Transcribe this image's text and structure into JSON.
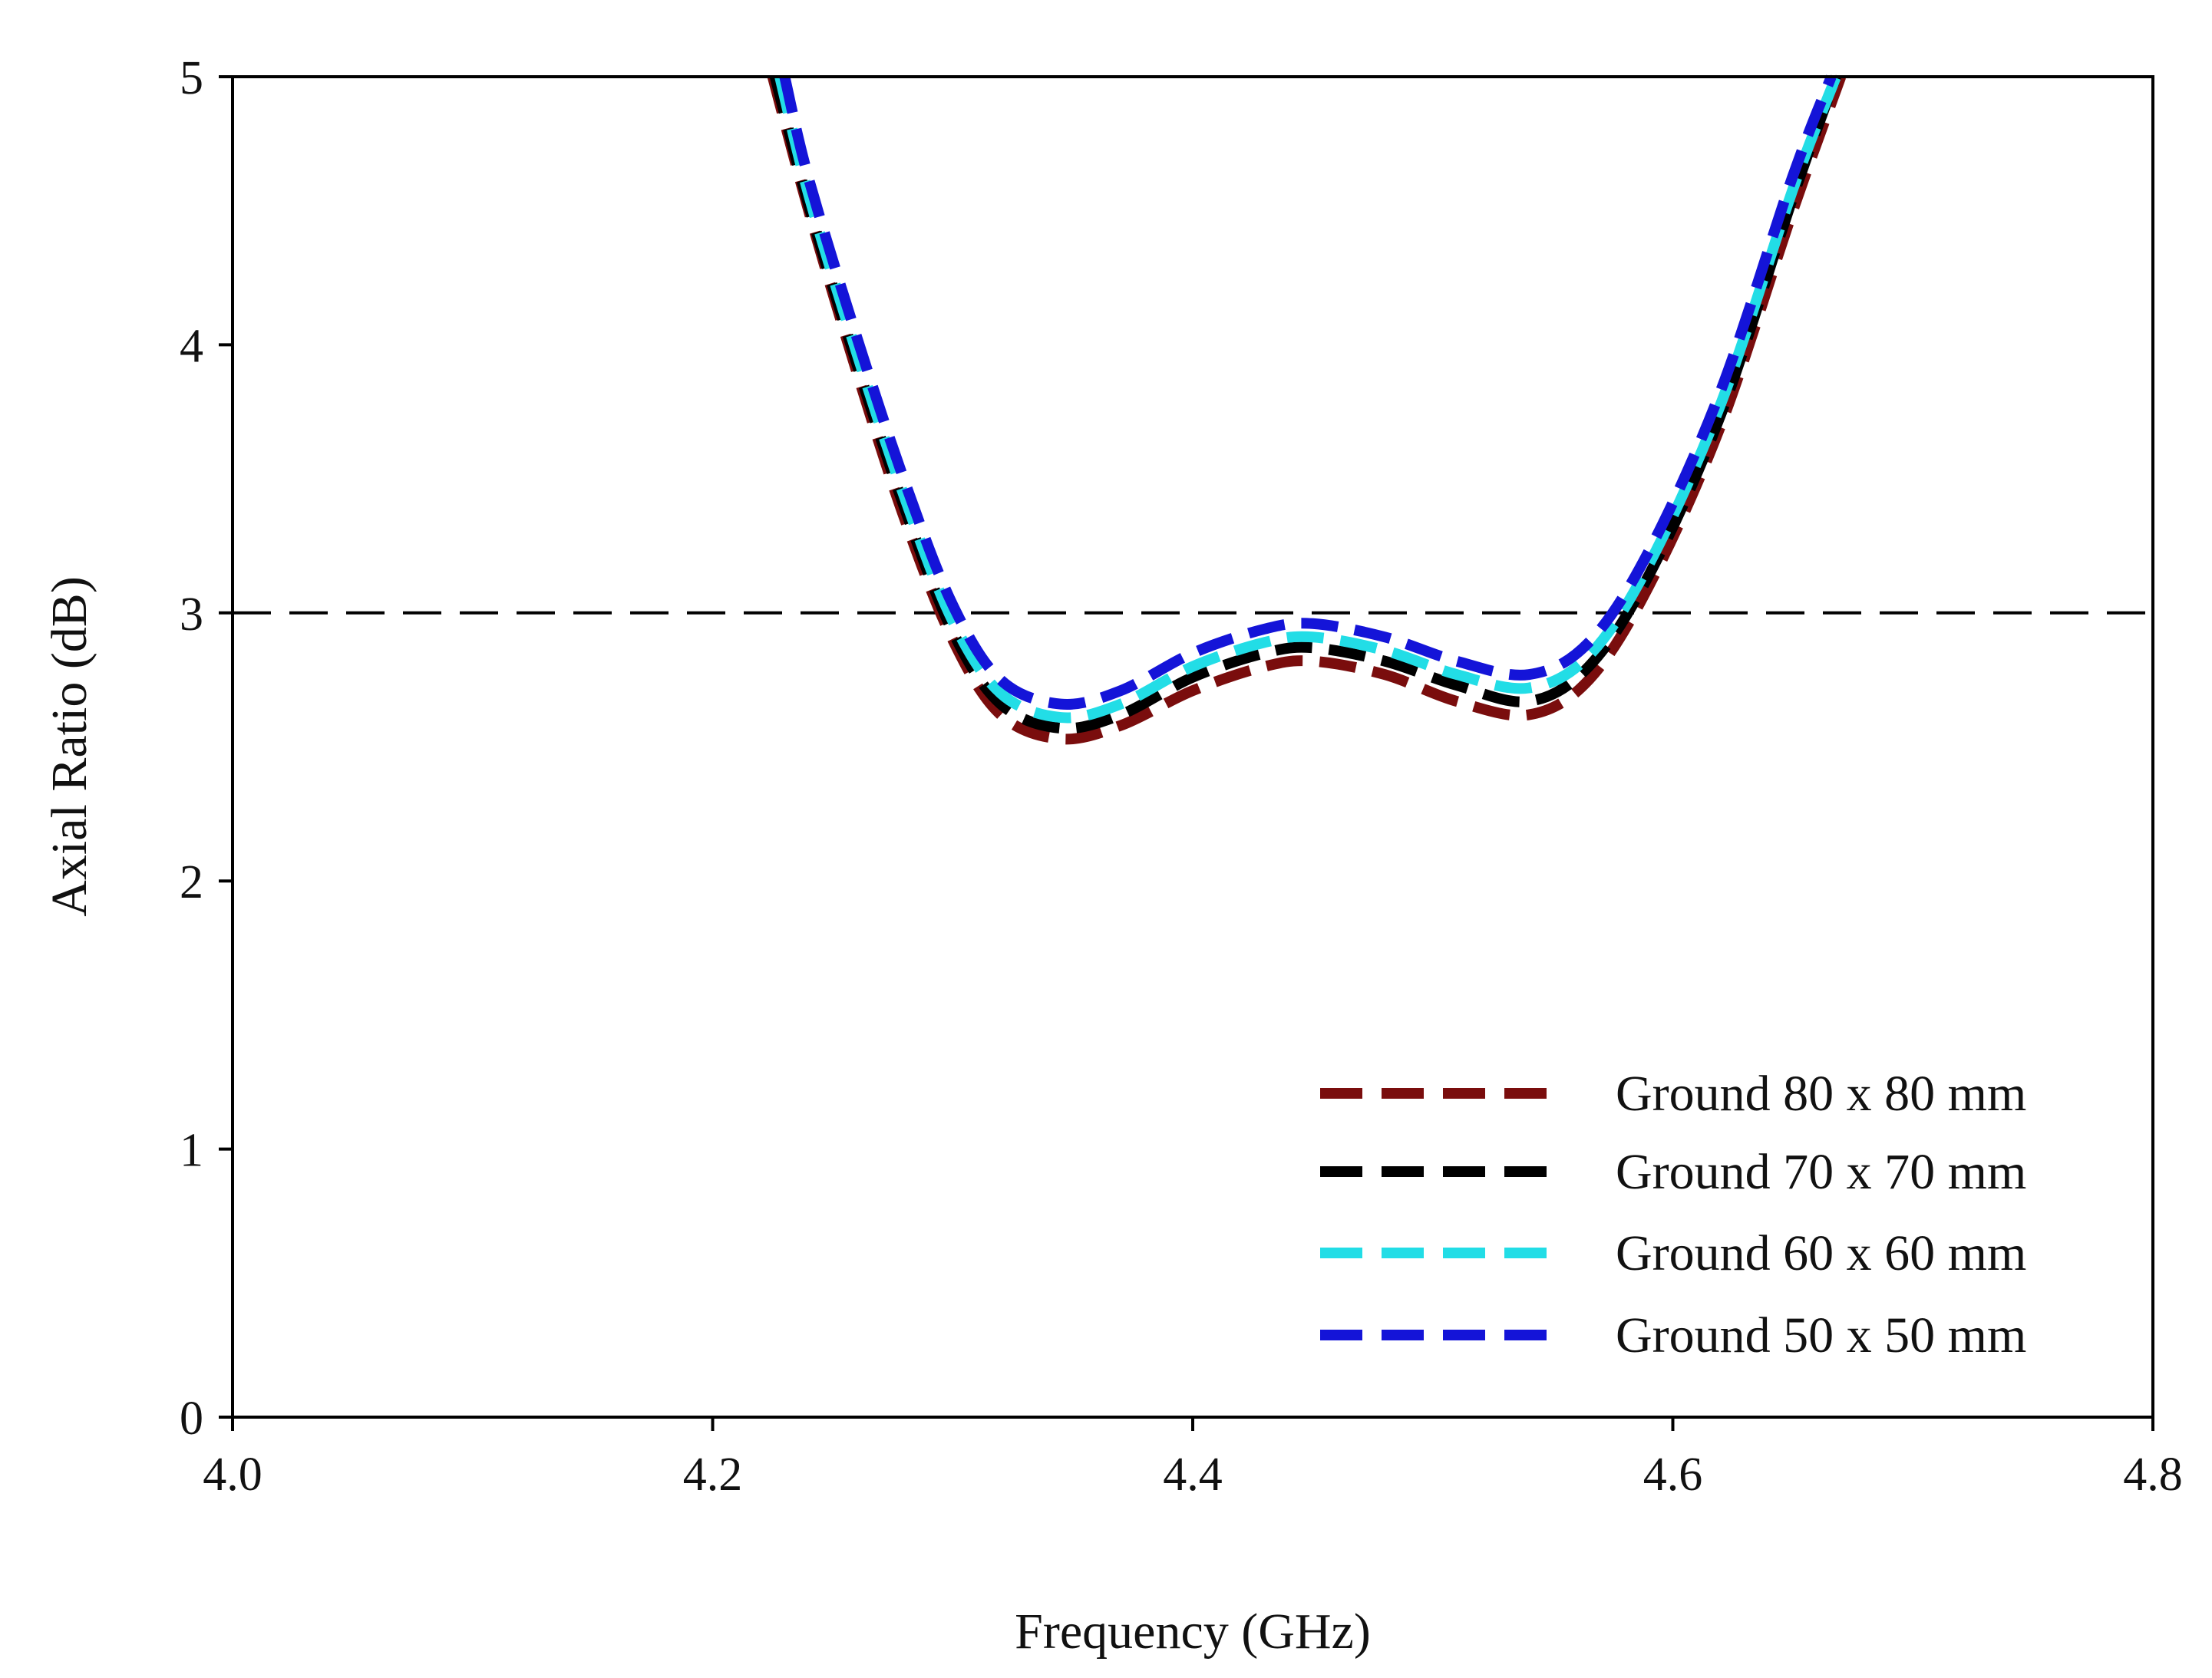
{
  "chart_data": {
    "type": "line",
    "title": "",
    "xlabel": "Frequency (GHz)",
    "ylabel": "Axial Ratio (dB)",
    "xlim": [
      4.0,
      4.8
    ],
    "ylim": [
      0,
      5
    ],
    "xticks": [
      4.0,
      4.2,
      4.4,
      4.6,
      4.8
    ],
    "xtick_labels": [
      "4.0",
      "4.2",
      "4.4",
      "4.6",
      "4.8"
    ],
    "yticks": [
      0,
      1,
      2,
      3,
      4,
      5
    ],
    "ytick_labels": [
      "0",
      "1",
      "2",
      "3",
      "4",
      "5"
    ],
    "grid": false,
    "legend_position": "bottom-right",
    "threshold": {
      "y": 3,
      "style": "dashed",
      "color": "#000000"
    },
    "series": [
      {
        "name": "Ground 80 x 80 mm",
        "color": "#7a0d0d",
        "x": [
          4.225,
          4.24,
          4.26,
          4.28,
          4.3,
          4.32,
          4.345,
          4.37,
          4.4,
          4.43,
          4.45,
          4.48,
          4.51,
          4.54,
          4.565,
          4.59,
          4.62,
          4.65,
          4.67
        ],
        "y": [
          5.0,
          4.5,
          3.9,
          3.35,
          2.9,
          2.62,
          2.53,
          2.58,
          2.71,
          2.8,
          2.82,
          2.77,
          2.67,
          2.62,
          2.75,
          3.1,
          3.7,
          4.5,
          5.0
        ]
      },
      {
        "name": "Ground 70 x 70 mm",
        "color": "#000000",
        "x": [
          4.226,
          4.24,
          4.26,
          4.28,
          4.3,
          4.32,
          4.345,
          4.37,
          4.4,
          4.43,
          4.45,
          4.48,
          4.51,
          4.54,
          4.565,
          4.59,
          4.62,
          4.65,
          4.668
        ],
        "y": [
          5.0,
          4.52,
          3.93,
          3.39,
          2.93,
          2.66,
          2.57,
          2.62,
          2.76,
          2.85,
          2.87,
          2.82,
          2.73,
          2.67,
          2.8,
          3.14,
          3.74,
          4.55,
          5.0
        ]
      },
      {
        "name": "Ground 60 x 60 mm",
        "color": "#22dde6",
        "x": [
          4.228,
          4.24,
          4.26,
          4.28,
          4.3,
          4.32,
          4.345,
          4.37,
          4.4,
          4.43,
          4.45,
          4.48,
          4.51,
          4.54,
          4.565,
          4.59,
          4.62,
          4.65,
          4.668
        ],
        "y": [
          5.0,
          4.56,
          3.97,
          3.43,
          2.97,
          2.7,
          2.61,
          2.66,
          2.8,
          2.89,
          2.91,
          2.86,
          2.77,
          2.72,
          2.84,
          3.18,
          3.78,
          4.58,
          5.0
        ]
      },
      {
        "name": "Ground 50 x 50 mm",
        "color": "#1414d8",
        "x": [
          4.23,
          4.24,
          4.26,
          4.28,
          4.3,
          4.32,
          4.345,
          4.37,
          4.4,
          4.43,
          4.45,
          4.48,
          4.51,
          4.54,
          4.565,
          4.59,
          4.62,
          4.65,
          4.666
        ],
        "y": [
          5.0,
          4.62,
          4.03,
          3.49,
          3.03,
          2.75,
          2.66,
          2.71,
          2.85,
          2.94,
          2.96,
          2.91,
          2.82,
          2.77,
          2.89,
          3.23,
          3.83,
          4.63,
          5.0
        ]
      }
    ],
    "legend": [
      {
        "ground": "Ground",
        "size": "80 x 80",
        "unit": "mm"
      },
      {
        "ground": "Ground",
        "size": "70 x 70",
        "unit": "mm"
      },
      {
        "ground": "Ground",
        "size": "60 x 60",
        "unit": "mm"
      },
      {
        "ground": "Ground",
        "size": "50 x 50",
        "unit": "mm"
      }
    ]
  }
}
